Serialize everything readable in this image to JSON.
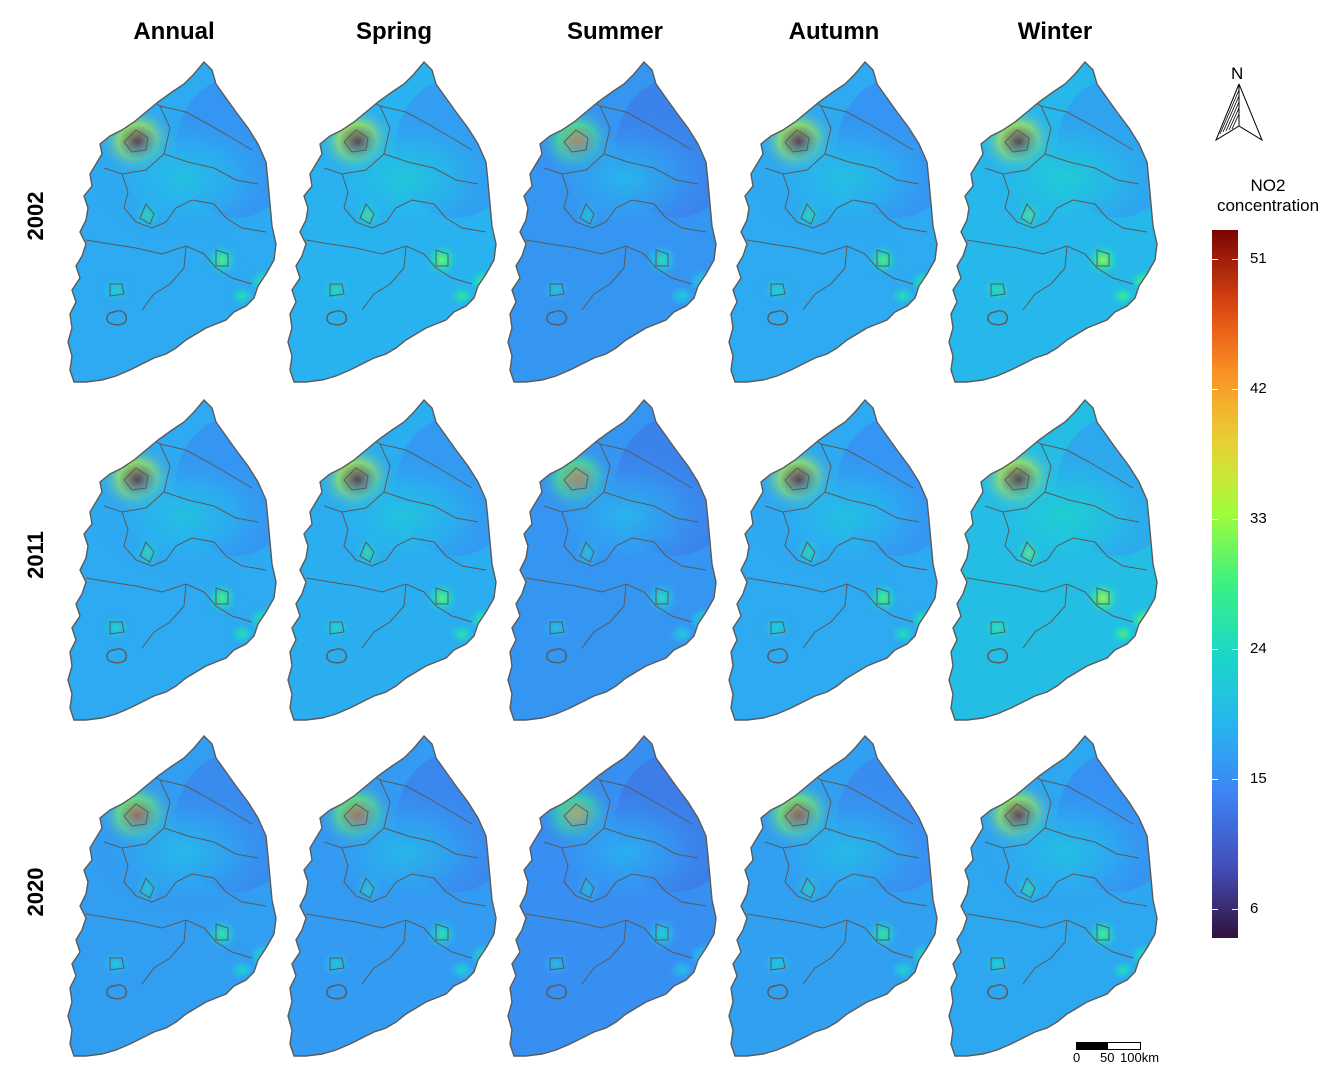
{
  "columns": [
    "Annual",
    "Spring",
    "Summer",
    "Autumn",
    "Winter"
  ],
  "rows": [
    "2002",
    "2011",
    "2020"
  ],
  "legend": {
    "title_line1": "NO2",
    "title_line2": "concentration",
    "ticks": [
      "51",
      "42",
      "33",
      "24",
      "15",
      "6"
    ],
    "range": [
      4,
      53
    ],
    "colormap": "turbo"
  },
  "north_arrow": {
    "label": "N"
  },
  "scale_bar": {
    "labels": [
      "0",
      "50",
      "100km"
    ]
  },
  "intensity": {
    "2002": {
      "Annual": 0.58,
      "Spring": 0.66,
      "Summer": 0.42,
      "Autumn": 0.58,
      "Winter": 0.72
    },
    "2011": {
      "Annual": 0.58,
      "Spring": 0.62,
      "Summer": 0.42,
      "Autumn": 0.58,
      "Winter": 0.78
    },
    "2020": {
      "Annual": 0.48,
      "Spring": 0.46,
      "Summer": 0.36,
      "Autumn": 0.5,
      "Winter": 0.56
    }
  },
  "colors": {
    "outline": "#5a5a5a",
    "background": "#ffffff"
  }
}
